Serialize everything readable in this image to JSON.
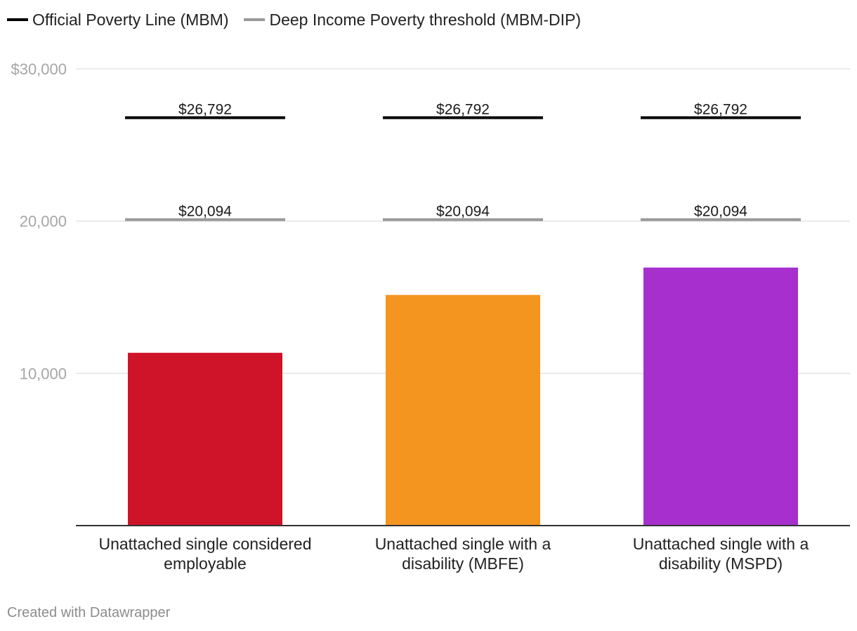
{
  "legend": [
    {
      "label": "Official Poverty Line (MBM)",
      "color": "#000000"
    },
    {
      "label": "Deep Income Poverty threshold (MBM-DIP)",
      "color": "#999999"
    }
  ],
  "footer": {
    "credit": "Created with Datawrapper"
  },
  "chart_data": {
    "type": "bar",
    "title": "",
    "xlabel": "",
    "ylabel": "",
    "ylim": [
      0,
      30000
    ],
    "grid": true,
    "y_ticks": [
      {
        "value": 30000,
        "label": "$30,000"
      },
      {
        "value": 20000,
        "label": "20,000"
      },
      {
        "value": 10000,
        "label": "10,000"
      }
    ],
    "categories": [
      [
        "Unattached single considered",
        "employable"
      ],
      [
        "Unattached single with a",
        "disability (MBFE)"
      ],
      [
        "Unattached single with a",
        "disability (MSPD)"
      ]
    ],
    "values": [
      11350,
      15150,
      16950
    ],
    "bar_colors": [
      "#cf1429",
      "#f4951f",
      "#a72fce"
    ],
    "reference_lines": [
      {
        "name": "Official Poverty Line (MBM)",
        "color": "#000000",
        "values": [
          26792,
          26792,
          26792
        ],
        "labels": [
          "$26,792",
          "$26,792",
          "$26,792"
        ]
      },
      {
        "name": "Deep Income Poverty threshold (MBM-DIP)",
        "color": "#999999",
        "values": [
          20094,
          20094,
          20094
        ],
        "labels": [
          "$20,094",
          "$20,094",
          "$20,094"
        ]
      }
    ]
  }
}
